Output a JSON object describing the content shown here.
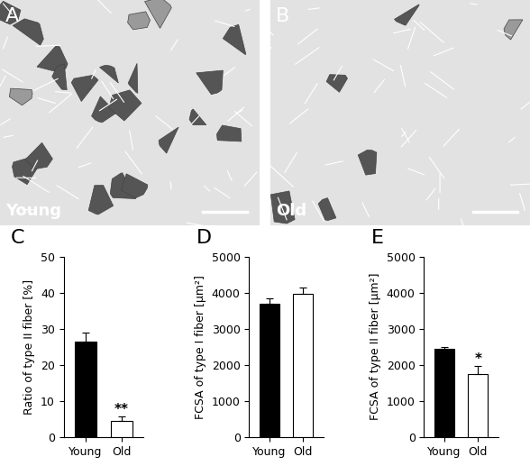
{
  "image_panels": [
    {
      "letter": "A",
      "label": "Young"
    },
    {
      "letter": "B",
      "label": "Old"
    }
  ],
  "chart_data": [
    {
      "type": "bar",
      "title": "C",
      "y_label": "Ratio of type II fiber [%]",
      "categories": [
        "Young",
        "Old"
      ],
      "values": [
        26.5,
        4.5
      ],
      "errors": [
        2.5,
        1.2
      ],
      "colors": [
        "#000000",
        "#ffffff"
      ],
      "ylim": [
        0,
        50
      ],
      "yticks": [
        0,
        10,
        20,
        30,
        40,
        50
      ],
      "annotations": [
        {
          "text": "**",
          "category": "Old"
        }
      ]
    },
    {
      "type": "bar",
      "title": "D",
      "y_label": "FCSA of type I fiber [μm²]",
      "categories": [
        "Young",
        "Old"
      ],
      "values": [
        3680,
        3970
      ],
      "errors": [
        150,
        170
      ],
      "colors": [
        "#000000",
        "#ffffff"
      ],
      "ylim": [
        0,
        5000
      ],
      "yticks": [
        0,
        1000,
        2000,
        3000,
        4000,
        5000
      ],
      "annotations": []
    },
    {
      "type": "bar",
      "title": "E",
      "y_label": "FCSA of type II fiber [μm²]",
      "categories": [
        "Young",
        "Old"
      ],
      "values": [
        2440,
        1740
      ],
      "errors": [
        50,
        230
      ],
      "colors": [
        "#000000",
        "#ffffff"
      ],
      "ylim": [
        0,
        5000
      ],
      "yticks": [
        0,
        1000,
        2000,
        3000,
        4000,
        5000
      ],
      "annotations": [
        {
          "text": "*",
          "category": "Old"
        }
      ]
    }
  ]
}
